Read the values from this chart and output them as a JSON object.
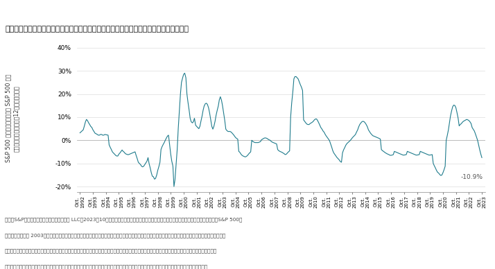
{
  "title": "図表１：均等ウェイト指数は今年に入ってからからこれまでアンダーパフォームしている",
  "ylabel_line1": "S&P 500 均等ウェイト指数と S&P 500 のト",
  "ylabel_line2": "ータル・リターンの差－12ヵ月ローリング",
  "line_color": "#1e7b8c",
  "background_color": "#ffffff",
  "annotation_text": "-10.9%",
  "footer_lines": [
    "出所：S&Pダウ・ジョーンズ・インデックス LLC。2023年10月現在のデータ。指数のパフォーマンスはトータル・リターンに基づいています。S&P 500均",
    "等ウェイト指数は 2003年１月８日に創出を開始しました。指数創出開始日前の全てのデータは、仮説に基づいてバックテストされたデータです。過去のパフ",
    "ォーマンスは将来の結果を保証するものではありません。図表は説明目的のために提示されており、仮説に基づく過去のパフォーマンスを反映しています。",
    "バックテストのパフォーマンスに関する固有の限界について詳しい情報をお求めの方は、この資料の最後にあるパフォーマンス提示をご覧ください。"
  ],
  "ylim": [
    -0.225,
    0.42
  ],
  "yticks": [
    -0.2,
    -0.1,
    0.0,
    0.1,
    0.2,
    0.3,
    0.4
  ],
  "ytick_labels": [
    "-20%",
    "-10%",
    "0%",
    "10%",
    "20%",
    "30%",
    "40%"
  ],
  "x_years": [
    1992,
    1993,
    1994,
    1995,
    1996,
    1997,
    1998,
    1999,
    2000,
    2001,
    2002,
    2003,
    2004,
    2005,
    2006,
    2007,
    2008,
    2009,
    2010,
    2011,
    2012,
    2013,
    2014,
    2015,
    2016,
    2017,
    2018,
    2019,
    2020,
    2021,
    2022,
    2023
  ],
  "x_data": [
    1992.75,
    1993.0,
    1993.08,
    1993.17,
    1993.25,
    1993.33,
    1993.42,
    1993.5,
    1993.58,
    1993.67,
    1993.75,
    1993.83,
    1993.92,
    1994.0,
    1994.08,
    1994.17,
    1994.25,
    1994.33,
    1994.42,
    1994.5,
    1994.58,
    1994.67,
    1994.75,
    1994.83,
    1994.92,
    1995.0,
    1995.08,
    1995.17,
    1995.25,
    1995.33,
    1995.42,
    1995.5,
    1995.58,
    1995.67,
    1995.75,
    1995.83,
    1995.92,
    1996.0,
    1996.08,
    1996.17,
    1996.25,
    1996.33,
    1996.42,
    1996.5,
    1996.58,
    1996.67,
    1996.75,
    1996.83,
    1996.92,
    1997.0,
    1997.08,
    1997.17,
    1997.25,
    1997.33,
    1997.42,
    1997.5,
    1997.58,
    1997.67,
    1997.75,
    1997.83,
    1997.92,
    1998.0,
    1998.08,
    1998.17,
    1998.25,
    1998.33,
    1998.42,
    1998.5,
    1998.58,
    1998.67,
    1998.75,
    1998.83,
    1998.92,
    1999.0,
    1999.08,
    1999.17,
    1999.25,
    1999.33,
    1999.42,
    1999.5,
    1999.58,
    1999.67,
    1999.75,
    1999.83,
    1999.92,
    2000.0,
    2000.08,
    2000.17,
    2000.25,
    2000.33,
    2000.42,
    2000.5,
    2000.58,
    2000.67,
    2000.75,
    2000.83,
    2000.92,
    2001.0,
    2001.08,
    2001.17,
    2001.25,
    2001.33,
    2001.42,
    2001.5,
    2001.58,
    2001.67,
    2001.75,
    2001.83,
    2001.92,
    2002.0,
    2002.08,
    2002.17,
    2002.25,
    2002.33,
    2002.42,
    2002.5,
    2002.58,
    2002.67,
    2002.75,
    2002.83,
    2002.92,
    2003.0,
    2003.08,
    2003.17,
    2003.25,
    2003.33,
    2003.42,
    2003.5,
    2003.58,
    2003.67,
    2003.75,
    2003.83,
    2003.92,
    2004.0,
    2004.08,
    2004.17,
    2004.25,
    2004.33,
    2004.42,
    2004.5,
    2004.58,
    2004.67,
    2004.75,
    2004.83,
    2004.92,
    2005.0,
    2005.08,
    2005.17,
    2005.25,
    2005.33,
    2005.42,
    2005.5,
    2005.58,
    2005.67,
    2005.75,
    2005.83,
    2005.92,
    2006.0,
    2006.08,
    2006.17,
    2006.25,
    2006.33,
    2006.42,
    2006.5,
    2006.58,
    2006.67,
    2006.75,
    2006.83,
    2006.92,
    2007.0,
    2007.08,
    2007.17,
    2007.25,
    2007.33,
    2007.42,
    2007.5,
    2007.58,
    2007.67,
    2007.75,
    2007.83,
    2007.92,
    2008.0,
    2008.08,
    2008.17,
    2008.25,
    2008.33,
    2008.42,
    2008.5,
    2008.58,
    2008.67,
    2008.75,
    2008.83,
    2008.92,
    2009.0,
    2009.08,
    2009.17,
    2009.25,
    2009.33,
    2009.42,
    2009.5,
    2009.58,
    2009.67,
    2009.75,
    2009.83,
    2009.92,
    2010.0,
    2010.08,
    2010.17,
    2010.25,
    2010.33,
    2010.42,
    2010.5,
    2010.58,
    2010.67,
    2010.75,
    2010.83,
    2010.92,
    2011.0,
    2011.08,
    2011.17,
    2011.25,
    2011.33,
    2011.42,
    2011.5,
    2011.58,
    2011.67,
    2011.75,
    2011.83,
    2011.92,
    2012.0,
    2012.08,
    2012.17,
    2012.25,
    2012.33,
    2012.42,
    2012.5,
    2012.58,
    2012.67,
    2012.75,
    2012.83,
    2012.92,
    2013.0,
    2013.08,
    2013.17,
    2013.25,
    2013.33,
    2013.42,
    2013.5,
    2013.58,
    2013.67,
    2013.75,
    2013.83,
    2013.92,
    2014.0,
    2014.08,
    2014.17,
    2014.25,
    2014.33,
    2014.42,
    2014.5,
    2014.58,
    2014.67,
    2014.75,
    2014.83,
    2014.92,
    2015.0,
    2015.08,
    2015.17,
    2015.25,
    2015.33,
    2015.42,
    2015.5,
    2015.58,
    2015.67,
    2015.75,
    2015.83,
    2015.92,
    2016.0,
    2016.08,
    2016.17,
    2016.25,
    2016.33,
    2016.42,
    2016.5,
    2016.58,
    2016.67,
    2016.75,
    2016.83,
    2016.92,
    2017.0,
    2017.08,
    2017.17,
    2017.25,
    2017.33,
    2017.42,
    2017.5,
    2017.58,
    2017.67,
    2017.75,
    2017.83,
    2017.92,
    2018.0,
    2018.08,
    2018.17,
    2018.25,
    2018.33,
    2018.42,
    2018.5,
    2018.58,
    2018.67,
    2018.75,
    2018.83,
    2018.92,
    2019.0,
    2019.08,
    2019.17,
    2019.25,
    2019.33,
    2019.42,
    2019.5,
    2019.58,
    2019.67,
    2019.75,
    2019.83,
    2019.92,
    2020.0,
    2020.08,
    2020.17,
    2020.25,
    2020.33,
    2020.42,
    2020.5,
    2020.58,
    2020.67,
    2020.75,
    2020.83,
    2020.92,
    2021.0,
    2021.08,
    2021.17,
    2021.25,
    2021.33,
    2021.42,
    2021.5,
    2021.58,
    2021.67,
    2021.75,
    2021.83,
    2021.92,
    2022.0,
    2022.08,
    2022.17,
    2022.25,
    2022.33,
    2022.42,
    2022.5,
    2022.58,
    2022.67,
    2022.75,
    2022.83,
    2022.92,
    2023.0,
    2023.08,
    2023.17,
    2023.25,
    2023.33,
    2023.42,
    2023.5,
    2023.58,
    2023.67,
    2023.75
  ],
  "y_data": [
    0.032,
    0.045,
    0.06,
    0.079,
    0.09,
    0.085,
    0.075,
    0.068,
    0.06,
    0.055,
    0.045,
    0.038,
    0.03,
    0.028,
    0.025,
    0.022,
    0.022,
    0.025,
    0.025,
    0.022,
    0.022,
    0.025,
    0.024,
    0.023,
    0.022,
    -0.02,
    -0.03,
    -0.04,
    -0.05,
    -0.055,
    -0.06,
    -0.065,
    -0.068,
    -0.068,
    -0.06,
    -0.055,
    -0.048,
    -0.042,
    -0.048,
    -0.052,
    -0.058,
    -0.06,
    -0.062,
    -0.062,
    -0.06,
    -0.058,
    -0.056,
    -0.054,
    -0.052,
    -0.05,
    -0.065,
    -0.08,
    -0.095,
    -0.1,
    -0.105,
    -0.112,
    -0.115,
    -0.112,
    -0.105,
    -0.098,
    -0.09,
    -0.075,
    -0.1,
    -0.12,
    -0.14,
    -0.155,
    -0.158,
    -0.168,
    -0.165,
    -0.15,
    -0.13,
    -0.115,
    -0.095,
    -0.04,
    -0.028,
    -0.018,
    -0.01,
    0.0,
    0.01,
    0.018,
    0.022,
    -0.02,
    -0.06,
    -0.09,
    -0.112,
    -0.2,
    -0.17,
    -0.1,
    -0.04,
    0.05,
    0.13,
    0.2,
    0.25,
    0.27,
    0.285,
    0.29,
    0.27,
    0.2,
    0.165,
    0.13,
    0.095,
    0.08,
    0.075,
    0.08,
    0.095,
    0.065,
    0.06,
    0.055,
    0.05,
    0.06,
    0.082,
    0.105,
    0.13,
    0.148,
    0.158,
    0.16,
    0.155,
    0.14,
    0.118,
    0.09,
    0.06,
    0.048,
    0.06,
    0.082,
    0.108,
    0.128,
    0.148,
    0.175,
    0.188,
    0.172,
    0.148,
    0.118,
    0.085,
    0.048,
    0.042,
    0.038,
    0.038,
    0.038,
    0.035,
    0.03,
    0.025,
    0.018,
    0.012,
    0.008,
    0.005,
    -0.048,
    -0.052,
    -0.06,
    -0.065,
    -0.068,
    -0.07,
    -0.072,
    -0.07,
    -0.066,
    -0.06,
    -0.055,
    -0.05,
    0.0,
    -0.005,
    -0.008,
    -0.01,
    -0.01,
    -0.01,
    -0.01,
    -0.008,
    -0.006,
    0.002,
    0.005,
    0.008,
    0.01,
    0.01,
    0.008,
    0.005,
    0.002,
    0.0,
    -0.005,
    -0.008,
    -0.01,
    -0.012,
    -0.014,
    -0.016,
    -0.04,
    -0.045,
    -0.048,
    -0.05,
    -0.052,
    -0.055,
    -0.058,
    -0.062,
    -0.06,
    -0.055,
    -0.05,
    -0.046,
    0.1,
    0.16,
    0.21,
    0.265,
    0.275,
    0.275,
    0.27,
    0.265,
    0.252,
    0.24,
    0.23,
    0.215,
    0.088,
    0.082,
    0.075,
    0.07,
    0.068,
    0.068,
    0.072,
    0.075,
    0.078,
    0.082,
    0.088,
    0.092,
    0.092,
    0.085,
    0.075,
    0.065,
    0.055,
    0.048,
    0.04,
    0.035,
    0.025,
    0.018,
    0.012,
    0.005,
    -0.002,
    -0.015,
    -0.03,
    -0.045,
    -0.055,
    -0.062,
    -0.068,
    -0.075,
    -0.08,
    -0.085,
    -0.092,
    -0.095,
    -0.055,
    -0.042,
    -0.032,
    -0.022,
    -0.015,
    -0.01,
    -0.006,
    -0.002,
    0.004,
    0.01,
    0.015,
    0.02,
    0.025,
    0.035,
    0.045,
    0.058,
    0.068,
    0.075,
    0.08,
    0.082,
    0.08,
    0.075,
    0.068,
    0.058,
    0.045,
    0.038,
    0.03,
    0.025,
    0.02,
    0.018,
    0.016,
    0.014,
    0.012,
    0.01,
    0.008,
    0.005,
    -0.04,
    -0.045,
    -0.048,
    -0.052,
    -0.055,
    -0.058,
    -0.06,
    -0.062,
    -0.065,
    -0.065,
    -0.064,
    -0.062,
    -0.048,
    -0.05,
    -0.052,
    -0.054,
    -0.056,
    -0.058,
    -0.06,
    -0.062,
    -0.064,
    -0.064,
    -0.063,
    -0.062,
    -0.048,
    -0.05,
    -0.052,
    -0.054,
    -0.056,
    -0.058,
    -0.06,
    -0.062,
    -0.064,
    -0.064,
    -0.063,
    -0.062,
    -0.048,
    -0.05,
    -0.052,
    -0.054,
    -0.056,
    -0.058,
    -0.06,
    -0.062,
    -0.064,
    -0.064,
    -0.063,
    -0.062,
    -0.1,
    -0.11,
    -0.12,
    -0.13,
    -0.138,
    -0.142,
    -0.148,
    -0.152,
    -0.15,
    -0.14,
    -0.128,
    -0.112,
    0.0,
    0.02,
    0.045,
    0.075,
    0.105,
    0.128,
    0.145,
    0.152,
    0.15,
    0.14,
    0.12,
    0.095,
    0.062,
    0.068,
    0.072,
    0.078,
    0.082,
    0.085,
    0.088,
    0.09,
    0.088,
    0.085,
    0.08,
    0.072,
    0.055,
    0.048,
    0.04,
    0.028,
    0.015,
    0.0,
    -0.02,
    -0.04,
    -0.06,
    -0.075,
    -0.088,
    -0.098,
    -0.085,
    -0.082,
    -0.08,
    -0.078,
    -0.076,
    -0.074,
    -0.072,
    -0.074,
    -0.08,
    -0.088,
    -0.096,
    -0.104,
    -0.108,
    -0.108,
    -0.108,
    -0.109
  ]
}
